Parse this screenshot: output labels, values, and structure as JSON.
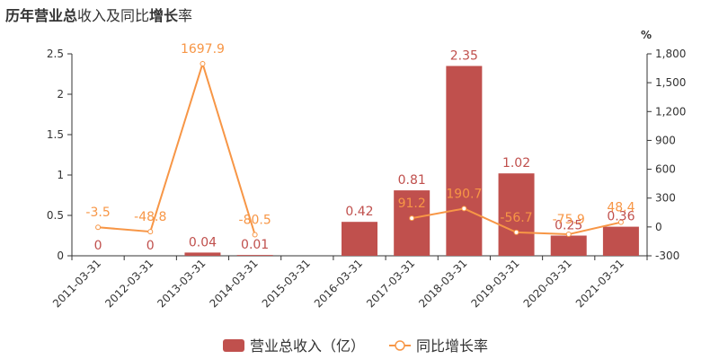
{
  "title": "历年营业总收入及同比增长率",
  "chart_data": {
    "type": "bar",
    "categories": [
      "2011-03-31",
      "2012-03-31",
      "2013-03-31",
      "2014-03-31",
      "2015-03-31",
      "2016-03-31",
      "2017-03-31",
      "2018-03-31",
      "2019-03-31",
      "2020-03-31",
      "2021-03-31"
    ],
    "series": [
      {
        "name": "营业总收入（亿）",
        "type": "bar",
        "axis": "left",
        "color": "#c0504d",
        "values": [
          0,
          0,
          0.04,
          0.01,
          null,
          0.42,
          0.81,
          2.35,
          1.02,
          0.25,
          0.36
        ],
        "labels": [
          "0",
          "0",
          "0.04",
          "0.01",
          null,
          "0.42",
          "0.81",
          "2.35",
          "1.02",
          "0.25",
          "0.36"
        ]
      },
      {
        "name": "同比增长率",
        "type": "line",
        "axis": "right",
        "color": "#f79646",
        "values": [
          -3.5,
          -48.8,
          1697.9,
          -80.5,
          null,
          null,
          91.2,
          190.7,
          -56.7,
          -75.9,
          48.4
        ],
        "labels": [
          "-3.5",
          "-48.8",
          "1697.9",
          "-80.5",
          null,
          null,
          "91.2",
          "190.7",
          "-56.7",
          "-75.9",
          "48.4"
        ]
      }
    ],
    "y_left": {
      "min": 0,
      "max": 2.5,
      "ticks": [
        0,
        0.5,
        1,
        1.5,
        2,
        2.5
      ],
      "tick_labels": [
        "0",
        "0.5",
        "1",
        "1.5",
        "2",
        "2.5"
      ]
    },
    "y_right": {
      "min": -300,
      "max": 1800,
      "unit": "%",
      "ticks": [
        -300,
        0,
        300,
        600,
        900,
        1200,
        1500,
        1800
      ],
      "tick_labels": [
        "-300",
        "0",
        "300",
        "600",
        "900",
        "1,200",
        "1,500",
        "1,800"
      ]
    },
    "grid": false,
    "legend_position": "bottom-center"
  }
}
